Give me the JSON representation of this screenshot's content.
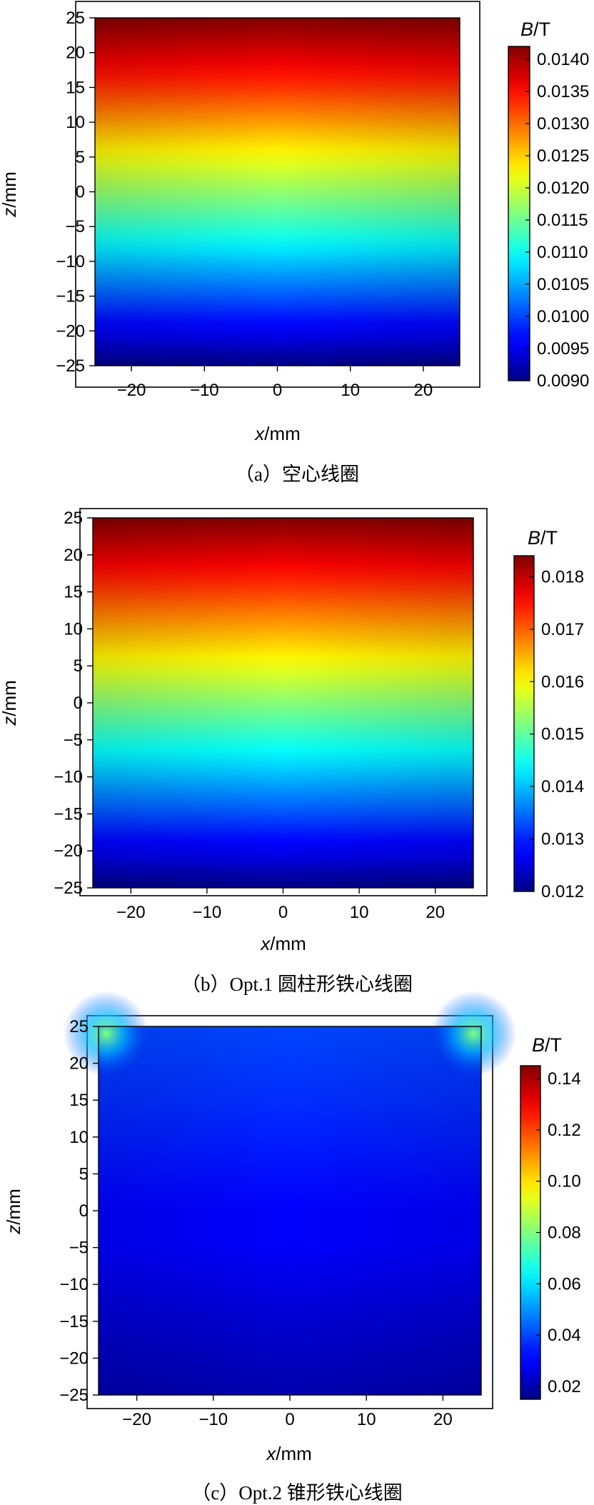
{
  "chart_data": [
    {
      "type": "heatmap",
      "caption": "（a）空心线圈",
      "xlabel_var": "x",
      "xlabel_unit": "/mm",
      "ylabel_var": "z",
      "ylabel_unit": "/mm",
      "x_ticks": [
        "−20",
        "−10",
        "0",
        "10",
        "20"
      ],
      "y_ticks": [
        "25",
        "20",
        "15",
        "10",
        "5",
        "0",
        "−5",
        "−10",
        "−15",
        "−20",
        "−25"
      ],
      "xlim": [
        -25,
        25
      ],
      "ylim": [
        -25,
        25
      ],
      "colorbar_title_var": "B",
      "colorbar_title_unit": "/T",
      "colorbar_ticks": [
        "0.0140",
        "0.0135",
        "0.0130",
        "0.0125",
        "0.0120",
        "0.0115",
        "0.0110",
        "0.0105",
        "0.0100",
        "0.0095",
        "0.0090"
      ],
      "colorbar_range": [
        0.009,
        0.0142
      ],
      "field_profile": {
        "z": [
          -25,
          -15,
          -5,
          5,
          15,
          25
        ],
        "B": [
          0.009,
          0.0101,
          0.0112,
          0.0122,
          0.0133,
          0.0142
        ]
      }
    },
    {
      "type": "heatmap",
      "caption": "（b）Opt.1 圆柱形铁心线圈",
      "xlabel_var": "x",
      "xlabel_unit": "/mm",
      "ylabel_var": "z",
      "ylabel_unit": "/mm",
      "x_ticks": [
        "−20",
        "−10",
        "0",
        "10",
        "20"
      ],
      "y_ticks": [
        "25",
        "20",
        "15",
        "10",
        "5",
        "0",
        "−5",
        "−10",
        "−15",
        "−20",
        "−25"
      ],
      "xlim": [
        -25,
        25
      ],
      "ylim": [
        -25,
        25
      ],
      "colorbar_title_var": "B",
      "colorbar_title_unit": "/T",
      "colorbar_ticks": [
        "0.018",
        "0.017",
        "0.016",
        "0.015",
        "0.014",
        "0.013",
        "0.012"
      ],
      "colorbar_range": [
        0.012,
        0.0184
      ],
      "field_profile": {
        "z": [
          -25,
          -15,
          -5,
          5,
          15,
          25
        ],
        "B": [
          0.012,
          0.0133,
          0.0146,
          0.0159,
          0.0172,
          0.0184
        ]
      }
    },
    {
      "type": "heatmap",
      "caption": "（c）Opt.2 锥形铁心线圈",
      "xlabel_var": "x",
      "xlabel_unit": "/mm",
      "ylabel_var": "z",
      "ylabel_unit": "/mm",
      "x_ticks": [
        "−20",
        "−10",
        "0",
        "10",
        "20"
      ],
      "y_ticks": [
        "25",
        "20",
        "15",
        "10",
        "5",
        "0",
        "−5",
        "−10",
        "−15",
        "−20",
        "−25"
      ],
      "xlim": [
        -25,
        25
      ],
      "ylim": [
        -25,
        25
      ],
      "colorbar_title_var": "B",
      "colorbar_title_unit": "/T",
      "colorbar_ticks": [
        "0.14",
        "0.12",
        "0.10",
        "0.08",
        "0.06",
        "0.04",
        "0.02"
      ],
      "colorbar_range": [
        0.015,
        0.145
      ],
      "field_profile": {
        "z": [
          -25,
          -15,
          -5,
          5,
          15,
          25
        ],
        "B": [
          0.02,
          0.024,
          0.029,
          0.033,
          0.037,
          0.04
        ]
      },
      "hotspots": [
        {
          "x": -24,
          "z": 24,
          "B": 0.08
        },
        {
          "x": 24,
          "z": 24,
          "B": 0.08
        }
      ]
    }
  ]
}
